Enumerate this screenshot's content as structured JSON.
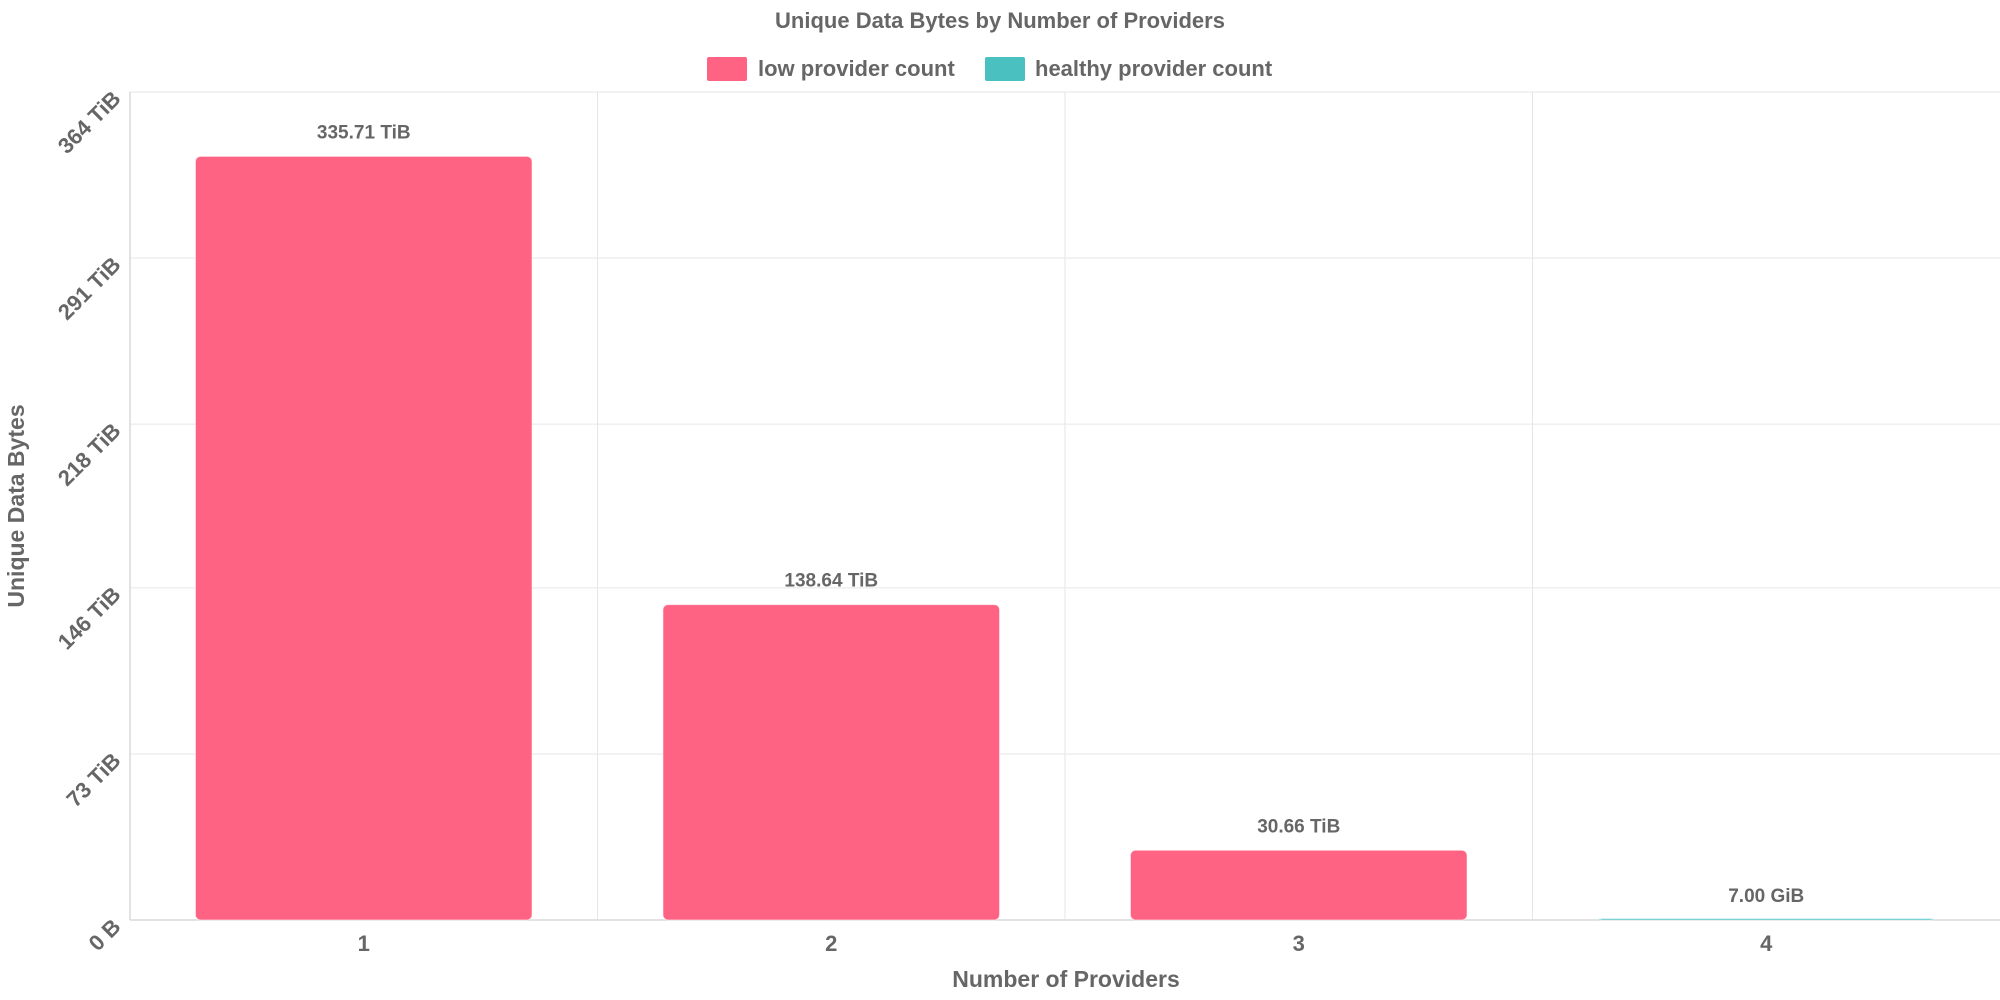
{
  "chart_data": {
    "type": "bar",
    "title": "Unique Data Bytes by Number of Providers",
    "xlabel": "Number of Providers",
    "ylabel": "Unique Data Bytes",
    "categories": [
      "1",
      "2",
      "3",
      "4"
    ],
    "series": [
      {
        "name": "low provider count",
        "color": "#ff6384",
        "values": [
          335.71,
          138.64,
          30.66,
          0
        ]
      },
      {
        "name": "healthy provider count",
        "color": "#4bc0c0",
        "values": [
          0,
          0,
          0,
          0.0068359375
        ]
      }
    ],
    "value_unit": "TiB",
    "data_labels": [
      "335.71 TiB",
      "138.64 TiB",
      "30.66 TiB",
      "7.00 GiB"
    ],
    "yticks": [
      {
        "value": 0,
        "label": "0 B"
      },
      {
        "value": 73,
        "label": "73 TiB"
      },
      {
        "value": 146,
        "label": "146 TiB"
      },
      {
        "value": 218,
        "label": "218 TiB"
      },
      {
        "value": 291,
        "label": "291 TiB"
      },
      {
        "value": 364,
        "label": "364 TiB"
      }
    ],
    "ylim": [
      0,
      364
    ],
    "grid": true,
    "legend_position": "top"
  }
}
